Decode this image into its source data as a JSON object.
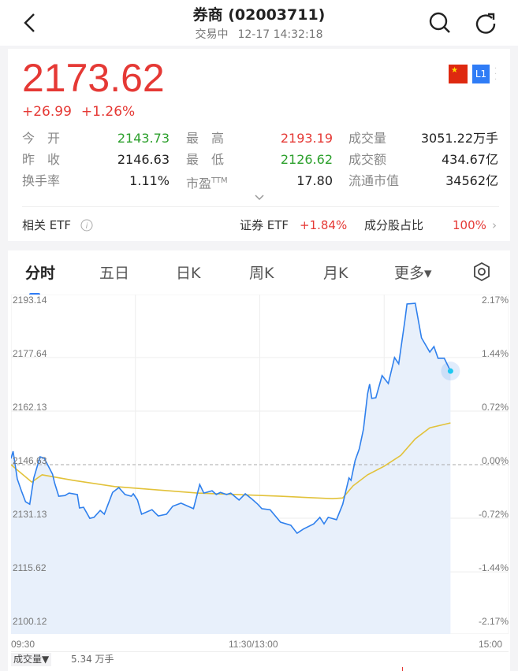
{
  "header": {
    "title": "券商 (02003711)",
    "status": "交易中",
    "datetime": "12-17 14:32:18",
    "back_icon": "chevron-left-icon",
    "search_icon": "search-icon",
    "refresh_icon": "refresh-icon"
  },
  "quote": {
    "price": "2173.62",
    "change": "+26.99",
    "change_pct": "+1.26%",
    "flag_icon": "china-flag-icon",
    "level_badge": "L1",
    "stats": [
      [
        {
          "label": "今　开",
          "value": "2143.73",
          "color": "green"
        },
        {
          "label": "最　高",
          "value": "2193.19",
          "color": "red"
        },
        {
          "label": "成交量",
          "value": "3051.22万手",
          "color": "normal"
        }
      ],
      [
        {
          "label": "昨　收",
          "value": "2146.63",
          "color": "normal"
        },
        {
          "label": "最　低",
          "value": "2126.62",
          "color": "green"
        },
        {
          "label": "成交额",
          "value": "434.67亿",
          "color": "normal"
        }
      ],
      [
        {
          "label": "换手率",
          "value": "1.11%",
          "color": "normal"
        },
        {
          "label": "市盈",
          "label_sup": "TTM",
          "value": "17.80",
          "color": "normal"
        },
        {
          "label": "流通市值",
          "value": "34562亿",
          "color": "normal"
        }
      ]
    ],
    "etf": {
      "label": "相关 ETF",
      "name": "证券 ETF",
      "change": "+1.84%",
      "ratio_label": "成分股占比",
      "ratio": "100%"
    }
  },
  "tabs": [
    {
      "label": "分时",
      "active": true
    },
    {
      "label": "五日"
    },
    {
      "label": "日K"
    },
    {
      "label": "周K"
    },
    {
      "label": "月K"
    },
    {
      "label": "更多▾"
    }
  ],
  "volume": {
    "label": "成交量▼",
    "value": "5.34 万手"
  },
  "colors": {
    "up": "#e53935",
    "down": "#2ca02c",
    "price_line": "#2f80ed",
    "avg_line": "#e2c23a",
    "fill": "#e8f0fb",
    "accent": "#2f7cf6"
  },
  "chart_data": {
    "type": "line",
    "x_ticks": [
      "09:30",
      "11:30/13:00",
      "15:00"
    ],
    "y_ticks": [
      "2193.14",
      "2177.64",
      "2162.13",
      "2146.63",
      "2131.13",
      "2115.62",
      "2100.12"
    ],
    "y_ticks_right": [
      "2.17%",
      "1.44%",
      "0.72%",
      "0.00%",
      "-0.72%",
      "-1.44%",
      "-2.17%"
    ],
    "ylim": [
      2100.12,
      2193.14
    ],
    "prev_close": 2146.63,
    "x_unit": "trading minutes from 09:30",
    "series": [
      {
        "key": "price",
        "points": [
          [
            0,
            2148.4
          ],
          [
            1,
            2150.5
          ],
          [
            3,
            2142.5
          ],
          [
            5,
            2139.1
          ],
          [
            7,
            2135.9
          ],
          [
            9,
            2135.2
          ],
          [
            11,
            2142.8
          ],
          [
            14,
            2148.9
          ],
          [
            16,
            2148.5
          ],
          [
            18,
            2146.2
          ],
          [
            20,
            2143.9
          ],
          [
            21,
            2141.4
          ],
          [
            23,
            2137.5
          ],
          [
            26,
            2137.7
          ],
          [
            28,
            2138.4
          ],
          [
            32,
            2138.0
          ],
          [
            33,
            2134.1
          ],
          [
            35,
            2134.3
          ],
          [
            38,
            2131.1
          ],
          [
            40,
            2131.4
          ],
          [
            43,
            2133.4
          ],
          [
            45,
            2132.3
          ],
          [
            49,
            2138.6
          ],
          [
            52,
            2140.0
          ],
          [
            55,
            2138.0
          ],
          [
            58,
            2137.5
          ],
          [
            59,
            2138.2
          ],
          [
            61,
            2136.4
          ],
          [
            63,
            2132.3
          ],
          [
            68,
            2133.6
          ],
          [
            71,
            2131.8
          ],
          [
            75,
            2132.3
          ],
          [
            78,
            2134.6
          ],
          [
            82,
            2135.5
          ],
          [
            88,
            2133.9
          ],
          [
            91,
            2140.9
          ],
          [
            93,
            2138.4
          ],
          [
            97,
            2139.1
          ],
          [
            99,
            2138.0
          ],
          [
            101,
            2138.6
          ],
          [
            104,
            2138.0
          ],
          [
            106,
            2138.4
          ],
          [
            110,
            2136.4
          ],
          [
            113,
            2138.2
          ],
          [
            116,
            2136.8
          ],
          [
            119,
            2135.2
          ],
          [
            121,
            2133.9
          ],
          [
            125,
            2133.6
          ],
          [
            130,
            2130.0
          ],
          [
            135,
            2129.1
          ],
          [
            138,
            2126.8
          ],
          [
            141,
            2128.0
          ],
          [
            146,
            2129.5
          ],
          [
            149,
            2131.4
          ],
          [
            151,
            2129.5
          ],
          [
            153,
            2131.4
          ],
          [
            157,
            2130.7
          ],
          [
            160,
            2135.2
          ],
          [
            163,
            2142.8
          ],
          [
            164,
            2142.1
          ],
          [
            166,
            2147.8
          ],
          [
            168,
            2151.2
          ],
          [
            170,
            2156.9
          ],
          [
            172,
            2167.1
          ],
          [
            173,
            2169.9
          ],
          [
            174,
            2165.8
          ],
          [
            176,
            2166.0
          ],
          [
            179,
            2172.4
          ],
          [
            182,
            2170.1
          ],
          [
            185,
            2177.6
          ],
          [
            187,
            2175.8
          ],
          [
            190,
            2188.3
          ],
          [
            191,
            2193.1
          ],
          [
            195,
            2193.3
          ],
          [
            198,
            2183.3
          ],
          [
            202,
            2179.2
          ],
          [
            204,
            2180.8
          ],
          [
            206,
            2177.4
          ],
          [
            209,
            2177.4
          ],
          [
            212,
            2173.7
          ]
        ]
      },
      {
        "key": "average",
        "points": [
          [
            0,
            2146.6
          ],
          [
            10,
            2141.6
          ],
          [
            15,
            2143.7
          ],
          [
            30,
            2142.1
          ],
          [
            50,
            2140.3
          ],
          [
            90,
            2138.4
          ],
          [
            130,
            2137.5
          ],
          [
            155,
            2136.8
          ],
          [
            160,
            2137.0
          ],
          [
            165,
            2140.5
          ],
          [
            172,
            2143.7
          ],
          [
            180,
            2146.2
          ],
          [
            188,
            2149.3
          ],
          [
            195,
            2154.1
          ],
          [
            202,
            2157.3
          ],
          [
            212,
            2158.7
          ]
        ]
      }
    ]
  }
}
